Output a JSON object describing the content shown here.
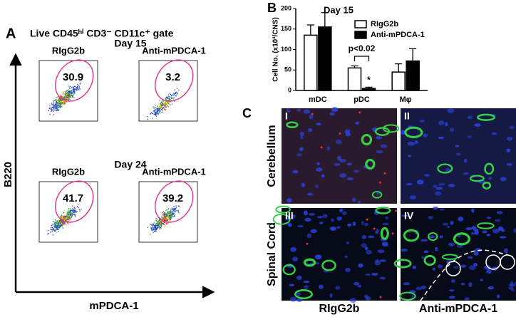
{
  "panel_a": {
    "letter": "A",
    "title": "Live CD45ʰⁱ CD3⁻ CD11c⁺ gate",
    "rows": [
      {
        "day": "Day 15",
        "plots": [
          {
            "label": "RIgG2b",
            "percent": "30.9"
          },
          {
            "label": "Anti-mPDCA-1",
            "percent": "3.2"
          }
        ]
      },
      {
        "day": "Day 24",
        "plots": [
          {
            "label": "RIgG2b",
            "percent": "41.7"
          },
          {
            "label": "Anti-mPDCA-1",
            "percent": "39.2"
          }
        ]
      }
    ],
    "y_axis_label": "B220",
    "x_axis_label": "mPDCA-1"
  },
  "chart_data": {
    "type": "bar",
    "letter": "B",
    "title": "Day 15",
    "y_label": "Cell No. (x10³/CNS)",
    "categories": [
      "mDC",
      "pDC",
      "Mφ"
    ],
    "series": [
      {
        "name": "RIgG2b",
        "color": "#ffffff",
        "values": [
          135,
          55,
          45
        ],
        "errors": [
          25,
          5,
          20
        ]
      },
      {
        "name": "Anti-mPDCA-1",
        "color": "#000000",
        "values": [
          155,
          5,
          72
        ],
        "errors": [
          35,
          3,
          30
        ]
      }
    ],
    "ylim": [
      0,
      200
    ],
    "yticks": [
      0,
      50,
      100,
      150,
      200
    ],
    "annotations": [
      "p<0.02",
      "*"
    ]
  },
  "panel_c": {
    "letter": "C",
    "row_labels": [
      "Cerebellum",
      "Spinal Cord"
    ],
    "column_labels": [
      "RIgG2b",
      "Anti-mPDCA-1"
    ],
    "images": [
      "I",
      "II",
      "III",
      "IV"
    ]
  }
}
